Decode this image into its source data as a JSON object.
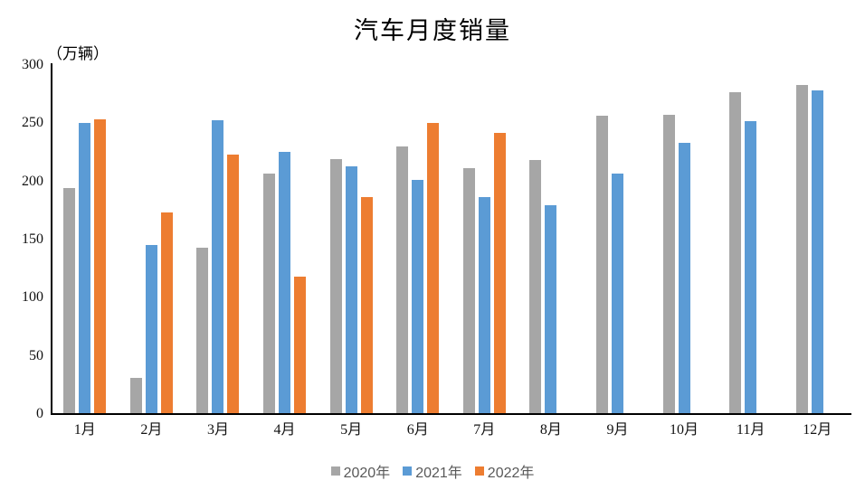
{
  "chart": {
    "title": "汽车月度销量",
    "unit_label": "（万辆）"
  },
  "chart_data": {
    "type": "bar",
    "title": "汽车月度销量",
    "ylabel": "（万辆）",
    "xlabel": "",
    "categories": [
      "1月",
      "2月",
      "3月",
      "4月",
      "5月",
      "6月",
      "7月",
      "8月",
      "9月",
      "10月",
      "11月",
      "12月"
    ],
    "series": [
      {
        "name": "2020年",
        "color": "#A6A6A6",
        "values": [
          194.1,
          31.0,
          143.0,
          207.0,
          219.4,
          230.0,
          211.2,
          218.6,
          256.5,
          257.3,
          277.0,
          283.1
        ]
      },
      {
        "name": "2021年",
        "color": "#5B9BD5",
        "values": [
          250.3,
          145.5,
          252.6,
          225.2,
          212.8,
          201.5,
          186.4,
          179.9,
          206.7,
          233.3,
          252.2,
          278.6
        ]
      },
      {
        "name": "2022年",
        "color": "#ED7D31",
        "values": [
          253.1,
          173.7,
          223.4,
          118.1,
          186.2,
          250.2,
          242.0,
          null,
          null,
          null,
          null,
          null
        ]
      }
    ],
    "ylim": [
      0,
      300
    ],
    "yticks": [
      0,
      50,
      100,
      150,
      200,
      250,
      300
    ],
    "grid": false,
    "legend_position": "bottom",
    "axis_color": "#000000",
    "text_color": "#111111",
    "legend_text_color": "#595959"
  }
}
